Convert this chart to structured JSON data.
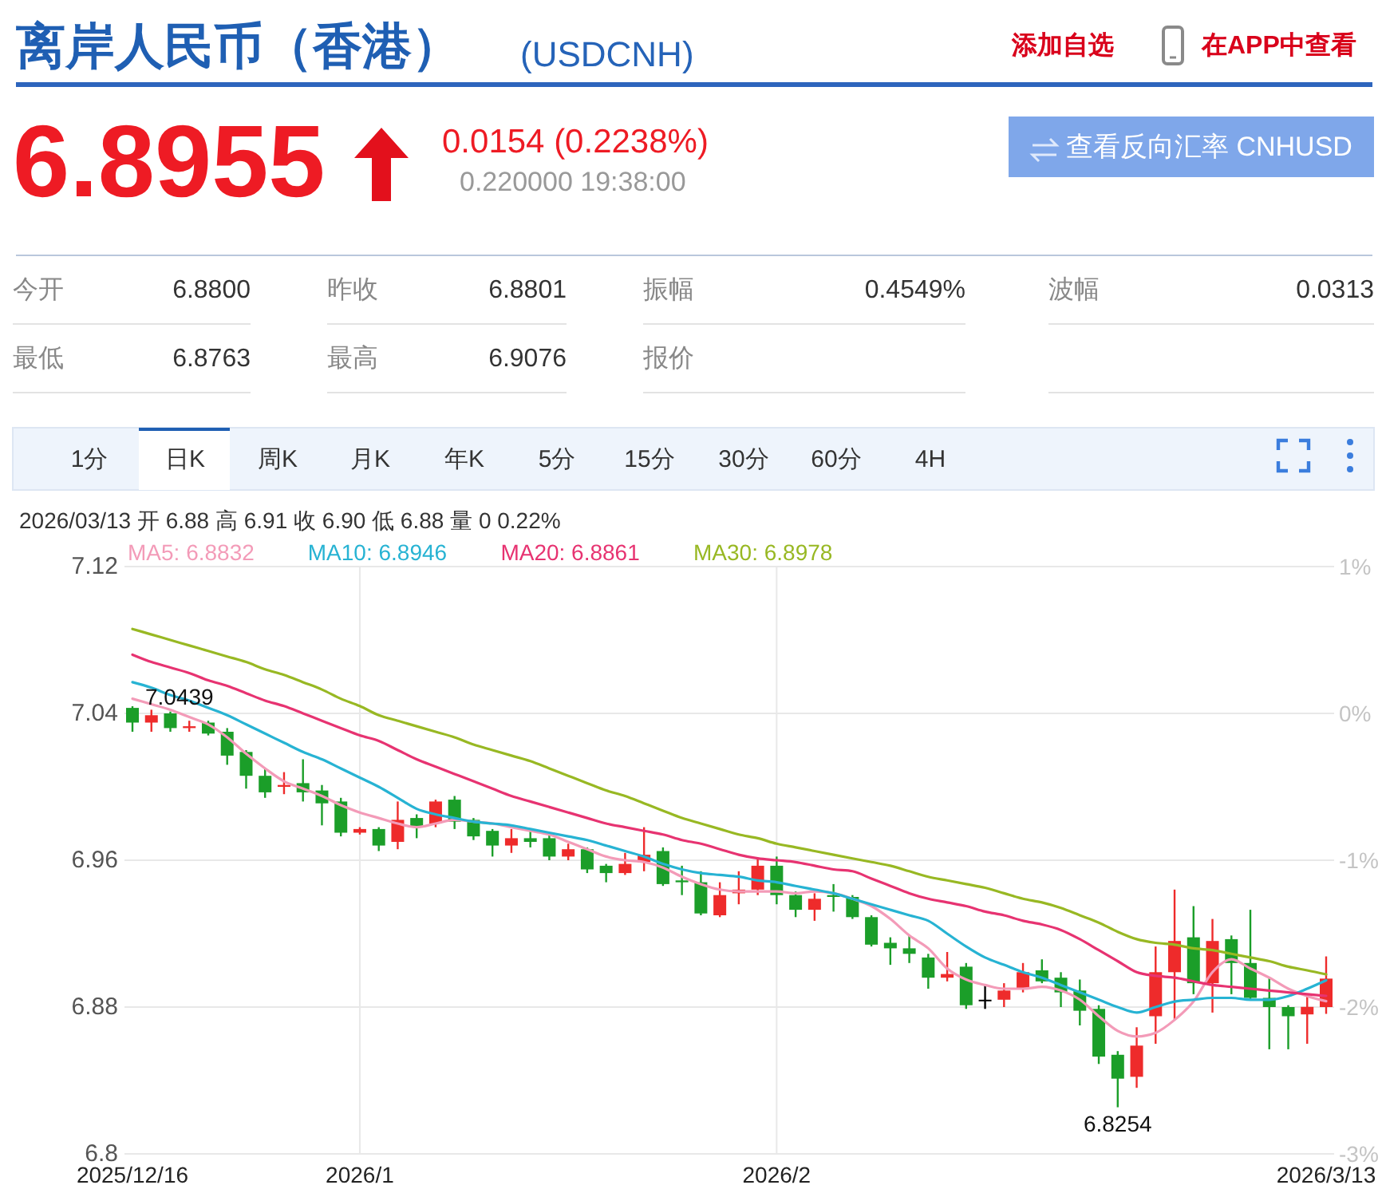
{
  "chart_data": {
    "type": "candlestick",
    "title": "离岸人民币（香港）",
    "subtitle": "(USDCNH)",
    "categories": [
      "2025/12/16",
      null,
      null,
      null,
      null,
      null,
      null,
      null,
      null,
      null,
      null,
      null,
      "2026/1",
      null,
      null,
      null,
      null,
      null,
      null,
      null,
      null,
      null,
      null,
      null,
      null,
      null,
      null,
      null,
      null,
      null,
      null,
      null,
      null,
      null,
      "2026/2",
      null,
      null,
      null,
      null,
      null,
      null,
      null,
      null,
      null,
      null,
      null,
      null,
      null,
      null,
      null,
      null,
      null,
      null,
      null,
      null,
      null,
      null,
      null,
      null,
      null,
      null,
      null,
      null,
      "2026/3/13"
    ],
    "ohlc": [
      [
        7.043,
        7.0439,
        7.03,
        7.035
      ],
      [
        7.035,
        7.042,
        7.03,
        7.039
      ],
      [
        7.04,
        7.041,
        7.03,
        7.032
      ],
      [
        7.032,
        7.036,
        7.03,
        7.033
      ],
      [
        7.035,
        7.036,
        7.028,
        7.029
      ],
      [
        7.03,
        7.032,
        7.012,
        7.017
      ],
      [
        7.019,
        7.02,
        6.999,
        7.006
      ],
      [
        7.006,
        7.01,
        6.994,
        6.997
      ],
      [
        7.0,
        7.008,
        6.996,
        7.001
      ],
      [
        7.002,
        7.015,
        6.992,
        6.997
      ],
      [
        6.998,
        7.001,
        6.979,
        6.991
      ],
      [
        6.992,
        6.994,
        6.973,
        6.975
      ],
      [
        6.975,
        6.978,
        6.974,
        6.977
      ],
      [
        6.977,
        6.978,
        6.965,
        6.968
      ],
      [
        6.97,
        6.992,
        6.966,
        6.982
      ],
      [
        6.983,
        6.985,
        6.972,
        6.978
      ],
      [
        6.98,
        6.993,
        6.978,
        6.992
      ],
      [
        6.993,
        6.995,
        6.977,
        6.981
      ],
      [
        6.982,
        6.983,
        6.971,
        6.973
      ],
      [
        6.976,
        6.977,
        6.962,
        6.968
      ],
      [
        6.968,
        6.977,
        6.964,
        6.972
      ],
      [
        6.972,
        6.977,
        6.967,
        6.97
      ],
      [
        6.972,
        6.974,
        6.96,
        6.962
      ],
      [
        6.962,
        6.969,
        6.96,
        6.966
      ],
      [
        6.966,
        6.967,
        6.953,
        6.955
      ],
      [
        6.957,
        6.958,
        6.948,
        6.953
      ],
      [
        6.953,
        6.964,
        6.952,
        6.958
      ],
      [
        6.959,
        6.978,
        6.954,
        6.963
      ],
      [
        6.965,
        6.967,
        6.946,
        6.947
      ],
      [
        6.949,
        6.957,
        6.941,
        6.948
      ],
      [
        6.948,
        6.954,
        6.93,
        6.931
      ],
      [
        6.93,
        6.948,
        6.929,
        6.941
      ],
      [
        6.942,
        6.954,
        6.936,
        6.944
      ],
      [
        6.944,
        6.961,
        6.941,
        6.957
      ],
      [
        6.957,
        6.962,
        6.936,
        6.941
      ],
      [
        6.941,
        6.943,
        6.929,
        6.933
      ],
      [
        6.933,
        6.942,
        6.927,
        6.939
      ],
      [
        6.941,
        6.947,
        6.932,
        6.94
      ],
      [
        6.94,
        6.941,
        6.928,
        6.929
      ],
      [
        6.929,
        6.93,
        6.913,
        6.914
      ],
      [
        6.915,
        6.918,
        6.903,
        6.912
      ],
      [
        6.912,
        6.919,
        6.904,
        6.909
      ],
      [
        6.907,
        6.909,
        6.89,
        6.896
      ],
      [
        6.896,
        6.91,
        6.894,
        6.898
      ],
      [
        6.902,
        6.904,
        6.879,
        6.881
      ],
      [
        6.884,
        6.892,
        6.879,
        6.884
      ],
      [
        6.884,
        6.893,
        6.88,
        6.889
      ],
      [
        6.89,
        6.904,
        6.888,
        6.899
      ],
      [
        6.9,
        6.906,
        6.893,
        6.894
      ],
      [
        6.896,
        6.899,
        6.88,
        6.888
      ],
      [
        6.889,
        6.895,
        6.87,
        6.878
      ],
      [
        6.879,
        6.881,
        6.849,
        6.853
      ],
      [
        6.854,
        6.856,
        6.8254,
        6.841
      ],
      [
        6.842,
        6.869,
        6.836,
        6.859
      ],
      [
        6.875,
        6.913,
        6.86,
        6.899
      ],
      [
        6.899,
        6.944,
        6.873,
        6.916
      ],
      [
        6.918,
        6.935,
        6.887,
        6.893
      ],
      [
        6.893,
        6.928,
        6.877,
        6.916
      ],
      [
        6.917,
        6.919,
        6.887,
        6.904
      ],
      [
        6.904,
        6.933,
        6.884,
        6.885
      ],
      [
        6.885,
        6.896,
        6.857,
        6.88
      ],
      [
        6.88,
        6.881,
        6.857,
        6.875
      ],
      [
        6.876,
        6.887,
        6.86,
        6.8801
      ],
      [
        6.88,
        6.9076,
        6.8763,
        6.8955
      ]
    ],
    "colors": [
      "#1b9e29",
      "#ee2b2b",
      "#1b9e29",
      "#ee2b2b",
      "#1b9e29",
      "#1b9e29",
      "#1b9e29",
      "#1b9e29",
      "#ee2b2b",
      "#1b9e29",
      "#1b9e29",
      "#1b9e29",
      "#ee2b2b",
      "#1b9e29",
      "#ee2b2b",
      "#1b9e29",
      "#ee2b2b",
      "#1b9e29",
      "#1b9e29",
      "#1b9e29",
      "#ee2b2b",
      "#1b9e29",
      "#1b9e29",
      "#ee2b2b",
      "#1b9e29",
      "#1b9e29",
      "#ee2b2b",
      "#ee2b2b",
      "#1b9e29",
      "#1b9e29",
      "#1b9e29",
      "#ee2b2b",
      "#ee2b2b",
      "#ee2b2b",
      "#1b9e29",
      "#1b9e29",
      "#ee2b2b",
      "#1b9e29",
      "#1b9e29",
      "#1b9e29",
      "#1b9e29",
      "#1b9e29",
      "#1b9e29",
      "#ee2b2b",
      "#1b9e29",
      "#000000",
      "#ee2b2b",
      "#ee2b2b",
      "#1b9e29",
      "#1b9e29",
      "#1b9e29",
      "#1b9e29",
      "#1b9e29",
      "#ee2b2b",
      "#ee2b2b",
      "#ee2b2b",
      "#1b9e29",
      "#ee2b2b",
      "#1b9e29",
      "#1b9e29",
      "#1b9e29",
      "#1b9e29",
      "#ee2b2b",
      "#ee2b2b"
    ],
    "series": [
      {
        "type": "line",
        "name": "MA5: 6.8832",
        "color": "#f39bb8",
        "values": [
          7.048,
          7.045,
          7.042,
          7.038,
          7.034,
          7.027,
          7.018,
          7.01,
          7.003,
          6.999,
          6.995,
          6.99,
          6.986,
          6.983,
          6.98,
          6.978,
          6.98,
          6.982,
          6.981,
          6.98,
          6.978,
          6.976,
          6.974,
          6.97,
          6.966,
          6.962,
          6.96,
          6.959,
          6.956,
          6.951,
          6.947,
          6.944,
          6.943,
          6.943,
          6.943,
          6.942,
          6.943,
          6.942,
          6.939,
          6.935,
          6.928,
          6.919,
          6.912,
          6.901,
          6.895,
          6.892,
          6.89,
          6.89,
          6.891,
          6.889,
          6.884,
          6.875,
          6.867,
          6.864,
          6.866,
          6.873,
          6.883,
          6.899,
          6.906,
          6.901,
          6.896,
          6.89,
          6.886,
          6.8832
        ]
      },
      {
        "type": "line",
        "name": "MA10: 6.8946",
        "color": "#27b3d3",
        "values": [
          7.057,
          7.054,
          7.05,
          7.047,
          7.043,
          7.039,
          7.034,
          7.029,
          7.024,
          7.019,
          7.015,
          7.01,
          7.005,
          7.0,
          6.994,
          6.988,
          6.985,
          6.983,
          6.981,
          6.98,
          6.979,
          6.977,
          6.975,
          6.973,
          6.971,
          6.968,
          6.965,
          6.962,
          6.958,
          6.955,
          6.953,
          6.952,
          6.951,
          6.949,
          6.948,
          6.946,
          6.944,
          6.942,
          6.939,
          6.936,
          6.933,
          6.93,
          6.927,
          6.92,
          6.913,
          6.907,
          6.903,
          6.899,
          6.896,
          6.892,
          6.888,
          6.884,
          6.88,
          6.877,
          6.88,
          6.883,
          6.884,
          6.885,
          6.885,
          6.884,
          6.884,
          6.886,
          6.89,
          6.8946
        ]
      },
      {
        "type": "line",
        "name": "MA20: 6.8861",
        "color": "#e73371",
        "values": [
          7.072,
          7.068,
          7.065,
          7.062,
          7.058,
          7.055,
          7.051,
          7.047,
          7.044,
          7.04,
          7.036,
          7.032,
          7.028,
          7.025,
          7.02,
          7.015,
          7.011,
          7.007,
          7.003,
          6.999,
          6.995,
          6.992,
          6.989,
          6.986,
          6.983,
          6.98,
          6.978,
          6.976,
          6.974,
          6.971,
          6.969,
          6.966,
          6.963,
          6.961,
          6.96,
          6.959,
          6.957,
          6.955,
          6.954,
          6.95,
          6.946,
          6.942,
          6.939,
          6.937,
          6.935,
          6.932,
          6.93,
          6.927,
          6.925,
          6.922,
          6.917,
          6.911,
          6.905,
          6.899,
          6.897,
          6.896,
          6.894,
          6.892,
          6.891,
          6.89,
          6.889,
          6.888,
          6.887,
          6.8861
        ]
      },
      {
        "type": "line",
        "name": "MA30: 6.8978",
        "color": "#98b823",
        "values": [
          7.086,
          7.083,
          7.08,
          7.077,
          7.074,
          7.071,
          7.068,
          7.064,
          7.061,
          7.057,
          7.053,
          7.048,
          7.044,
          7.039,
          7.036,
          7.033,
          7.03,
          7.027,
          7.023,
          7.02,
          7.017,
          7.014,
          7.01,
          7.006,
          7.002,
          6.998,
          6.995,
          6.991,
          6.987,
          6.983,
          6.98,
          6.977,
          6.974,
          6.972,
          6.969,
          6.967,
          6.965,
          6.963,
          6.961,
          6.959,
          6.957,
          6.954,
          6.951,
          6.949,
          6.947,
          6.945,
          6.942,
          6.939,
          6.937,
          6.934,
          6.93,
          6.926,
          6.921,
          6.917,
          6.915,
          6.914,
          6.912,
          6.911,
          6.909,
          6.907,
          6.905,
          6.902,
          6.9,
          6.8978
        ]
      }
    ],
    "ylim": [
      6.8,
      7.12
    ],
    "yticks": [
      6.8,
      6.88,
      6.96,
      7.04,
      7.12
    ],
    "y2lim": [
      -3,
      1
    ],
    "y2ticks": [
      {
        "value": -3,
        "label": "-3%"
      },
      {
        "value": -2,
        "label": "-2%"
      },
      {
        "value": -1,
        "label": "-1%"
      },
      {
        "value": 0,
        "label": "0%"
      },
      {
        "value": 1,
        "label": "1%"
      }
    ],
    "grid": true,
    "legend": "top left",
    "annotations": [
      "添加自选",
      "在APP中查看",
      "6.8955",
      "0.0154 (0.2238%)",
      "0.220000 19:38:00",
      "查看反向汇率 CNHUSD",
      "今开",
      "6.8800",
      "昨收",
      "6.8801",
      "振幅",
      "0.4549%",
      "波幅",
      "0.0313",
      "最低",
      "6.8763",
      "最高",
      "6.9076",
      "报价",
      "1分",
      "日K",
      "周K",
      "月K",
      "年K",
      "5分",
      "15分",
      "30分",
      "60分",
      "4H",
      "2026/03/13 开 6.88 高 6.91 收 6.90 低 6.88 量 0 0.22%",
      {
        "text": "7.0439",
        "x": "2025/12/16",
        "y": 7.0439
      },
      {
        "text": "6.8254",
        "y": 6.8254
      }
    ]
  }
}
